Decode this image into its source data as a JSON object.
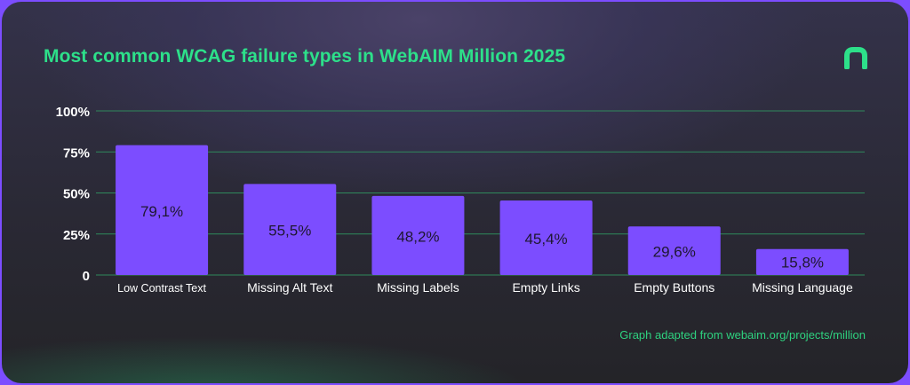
{
  "title": "Most common WCAG failure types in WebAIM Million 2025",
  "source_note": "Graph adapted from webaim.org/projects/million",
  "logo": {
    "icon": "brand-logo-icon",
    "color": "#2de08a"
  },
  "colors": {
    "bar": "#7c4dff",
    "accent": "#2de08a",
    "grid": "#2f8a5c",
    "text": "#ffffff",
    "bar_label": "#1e1730"
  },
  "chart_data": {
    "type": "bar",
    "title": "Most common WCAG failure types in WebAIM Million 2025",
    "categories": [
      "Low Contrast Text",
      "Missing Alt Text",
      "Missing Labels",
      "Empty Links",
      "Empty Buttons",
      "Missing Language"
    ],
    "values": [
      79.1,
      55.5,
      48.2,
      45.4,
      29.6,
      15.8
    ],
    "value_labels": [
      "79,1%",
      "55,5%",
      "48,2%",
      "45,4%",
      "29,6%",
      "15,8%"
    ],
    "ylim": [
      0,
      100
    ],
    "yticks": [
      0,
      25,
      50,
      75,
      100
    ],
    "ytick_labels": [
      "0",
      "25%",
      "50%",
      "75%",
      "100%"
    ],
    "xlabel": "",
    "ylabel": "",
    "grid": true,
    "legend": "none"
  }
}
